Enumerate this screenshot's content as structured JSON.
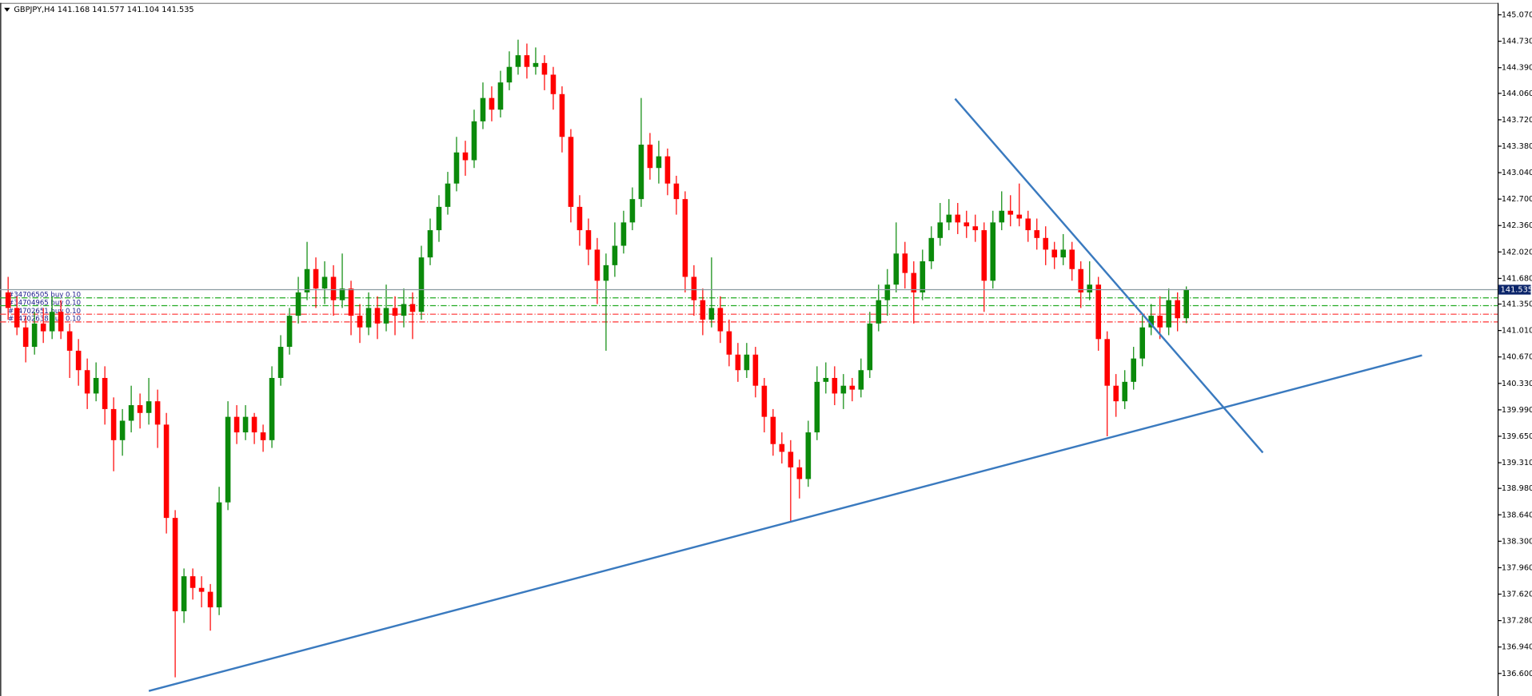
{
  "chart_data": {
    "type": "candlestick",
    "title": "GBPJPY,H4  141.168 141.577 141.104 141.535",
    "color_up": "#0b8a0b",
    "color_down": "#ff0000",
    "xlim": [
      -0.9,
      169.4
    ],
    "ylim": [
      136.31,
      145.21
    ],
    "yticks": [
      {
        "value": 145.07,
        "label": "145.070"
      },
      {
        "value": 144.73,
        "label": "144.730"
      },
      {
        "value": 144.39,
        "label": "144.390"
      },
      {
        "value": 144.06,
        "label": "144.060"
      },
      {
        "value": 143.72,
        "label": "143.720"
      },
      {
        "value": 143.38,
        "label": "143.380"
      },
      {
        "value": 143.04,
        "label": "143.040"
      },
      {
        "value": 142.7,
        "label": "142.700"
      },
      {
        "value": 142.36,
        "label": "142.360"
      },
      {
        "value": 142.02,
        "label": "142.020"
      },
      {
        "value": 141.68,
        "label": "141.680"
      },
      {
        "value": 141.35,
        "label": "141.350"
      },
      {
        "value": 141.01,
        "label": "141.010"
      },
      {
        "value": 140.67,
        "label": "140.670"
      },
      {
        "value": 140.33,
        "label": "140.330"
      },
      {
        "value": 139.99,
        "label": "139.990"
      },
      {
        "value": 139.65,
        "label": "139.650"
      },
      {
        "value": 139.31,
        "label": "139.310"
      },
      {
        "value": 138.98,
        "label": "138.980"
      },
      {
        "value": 138.64,
        "label": "138.640"
      },
      {
        "value": 138.3,
        "label": "138.300"
      },
      {
        "value": 137.96,
        "label": "137.960"
      },
      {
        "value": 137.62,
        "label": "137.620"
      },
      {
        "value": 137.28,
        "label": "137.280"
      },
      {
        "value": 136.94,
        "label": "136.940"
      },
      {
        "value": 136.6,
        "label": "136.600"
      }
    ],
    "bid": 141.535,
    "ohlc": [
      [
        141.5,
        141.7,
        141.15,
        141.3
      ],
      [
        141.3,
        141.45,
        140.95,
        141.05
      ],
      [
        141.05,
        141.2,
        140.6,
        140.8
      ],
      [
        140.8,
        141.25,
        140.7,
        141.1
      ],
      [
        141.1,
        141.3,
        140.85,
        141.0
      ],
      [
        141.0,
        141.45,
        140.9,
        141.25
      ],
      [
        141.25,
        141.4,
        140.9,
        141.0
      ],
      [
        141.0,
        141.1,
        140.4,
        140.75
      ],
      [
        140.75,
        140.9,
        140.3,
        140.5
      ],
      [
        140.5,
        140.65,
        140.0,
        140.2
      ],
      [
        140.2,
        140.6,
        140.1,
        140.4
      ],
      [
        140.4,
        140.55,
        139.8,
        140.0
      ],
      [
        140.0,
        140.15,
        139.2,
        139.6
      ],
      [
        139.6,
        140.0,
        139.4,
        139.85
      ],
      [
        139.85,
        140.3,
        139.7,
        140.05
      ],
      [
        140.05,
        140.2,
        139.75,
        139.95
      ],
      [
        139.95,
        140.4,
        139.8,
        140.1
      ],
      [
        140.1,
        140.25,
        139.5,
        139.8
      ],
      [
        139.8,
        139.95,
        138.4,
        138.6
      ],
      [
        138.6,
        138.7,
        136.55,
        137.4
      ],
      [
        137.4,
        137.95,
        137.25,
        137.85
      ],
      [
        137.85,
        137.95,
        137.55,
        137.7
      ],
      [
        137.7,
        137.85,
        137.45,
        137.65
      ],
      [
        137.65,
        137.75,
        137.15,
        137.45
      ],
      [
        137.45,
        139.0,
        137.35,
        138.8
      ],
      [
        138.8,
        140.1,
        138.7,
        139.9
      ],
      [
        139.9,
        140.05,
        139.55,
        139.7
      ],
      [
        139.7,
        140.05,
        139.6,
        139.9
      ],
      [
        139.9,
        139.95,
        139.55,
        139.7
      ],
      [
        139.7,
        139.8,
        139.45,
        139.6
      ],
      [
        139.6,
        140.55,
        139.5,
        140.4
      ],
      [
        140.4,
        140.95,
        140.3,
        140.8
      ],
      [
        140.8,
        141.3,
        140.7,
        141.2
      ],
      [
        141.2,
        141.7,
        141.1,
        141.5
      ],
      [
        141.5,
        142.15,
        141.4,
        141.8
      ],
      [
        141.8,
        141.95,
        141.3,
        141.55
      ],
      [
        141.55,
        141.9,
        141.35,
        141.7
      ],
      [
        141.7,
        141.85,
        141.2,
        141.4
      ],
      [
        141.4,
        142.0,
        141.3,
        141.55
      ],
      [
        141.55,
        141.65,
        140.95,
        141.2
      ],
      [
        141.2,
        141.35,
        140.85,
        141.05
      ],
      [
        141.05,
        141.5,
        140.95,
        141.3
      ],
      [
        141.3,
        141.45,
        140.9,
        141.1
      ],
      [
        141.1,
        141.6,
        141.0,
        141.3
      ],
      [
        141.3,
        141.45,
        140.95,
        141.2
      ],
      [
        141.2,
        141.55,
        141.05,
        141.35
      ],
      [
        141.35,
        141.5,
        140.9,
        141.25
      ],
      [
        141.25,
        142.1,
        141.15,
        141.95
      ],
      [
        141.95,
        142.45,
        141.85,
        142.3
      ],
      [
        142.3,
        142.75,
        142.15,
        142.6
      ],
      [
        142.6,
        143.05,
        142.5,
        142.9
      ],
      [
        142.9,
        143.5,
        142.8,
        143.3
      ],
      [
        143.3,
        143.45,
        143.0,
        143.2
      ],
      [
        143.2,
        143.85,
        143.1,
        143.7
      ],
      [
        143.7,
        144.2,
        143.6,
        144.0
      ],
      [
        144.0,
        144.15,
        143.7,
        143.85
      ],
      [
        143.85,
        144.35,
        143.75,
        144.2
      ],
      [
        144.2,
        144.6,
        144.1,
        144.4
      ],
      [
        144.4,
        144.75,
        144.3,
        144.55
      ],
      [
        144.55,
        144.7,
        144.25,
        144.4
      ],
      [
        144.4,
        144.65,
        144.3,
        144.45
      ],
      [
        144.45,
        144.55,
        144.1,
        144.3
      ],
      [
        144.3,
        144.4,
        143.85,
        144.05
      ],
      [
        144.05,
        144.15,
        143.3,
        143.5
      ],
      [
        143.5,
        143.6,
        142.4,
        142.6
      ],
      [
        142.6,
        142.75,
        142.1,
        142.3
      ],
      [
        142.3,
        142.45,
        141.85,
        142.05
      ],
      [
        142.05,
        142.2,
        141.35,
        141.65
      ],
      [
        141.65,
        142.0,
        140.75,
        141.85
      ],
      [
        141.85,
        142.4,
        141.7,
        142.1
      ],
      [
        142.1,
        142.55,
        142.0,
        142.4
      ],
      [
        142.4,
        142.85,
        142.3,
        142.7
      ],
      [
        142.7,
        144.0,
        142.6,
        143.4
      ],
      [
        143.4,
        143.55,
        142.95,
        143.1
      ],
      [
        143.1,
        143.45,
        142.9,
        143.25
      ],
      [
        143.25,
        143.35,
        142.75,
        142.9
      ],
      [
        142.9,
        143.0,
        142.5,
        142.7
      ],
      [
        142.7,
        142.8,
        141.5,
        141.7
      ],
      [
        141.7,
        141.85,
        141.2,
        141.4
      ],
      [
        141.4,
        141.55,
        140.95,
        141.15
      ],
      [
        141.15,
        141.95,
        141.05,
        141.3
      ],
      [
        141.3,
        141.45,
        140.85,
        141.0
      ],
      [
        141.0,
        141.15,
        140.55,
        140.7
      ],
      [
        140.7,
        140.85,
        140.35,
        140.5
      ],
      [
        140.5,
        140.85,
        140.4,
        140.7
      ],
      [
        140.7,
        140.8,
        140.15,
        140.3
      ],
      [
        140.3,
        140.4,
        139.7,
        139.9
      ],
      [
        139.9,
        140.0,
        139.4,
        139.55
      ],
      [
        139.55,
        139.7,
        139.3,
        139.45
      ],
      [
        139.45,
        139.6,
        138.55,
        139.25
      ],
      [
        139.25,
        139.35,
        138.85,
        139.1
      ],
      [
        139.1,
        139.85,
        139.0,
        139.7
      ],
      [
        139.7,
        140.55,
        139.6,
        140.35
      ],
      [
        140.35,
        140.6,
        140.2,
        140.4
      ],
      [
        140.4,
        140.55,
        140.05,
        140.2
      ],
      [
        140.2,
        140.45,
        140.0,
        140.3
      ],
      [
        140.3,
        140.4,
        140.1,
        140.25
      ],
      [
        140.25,
        140.65,
        140.15,
        140.5
      ],
      [
        140.5,
        141.25,
        140.4,
        141.1
      ],
      [
        141.1,
        141.6,
        141.0,
        141.4
      ],
      [
        141.4,
        141.8,
        141.2,
        141.6
      ],
      [
        141.6,
        142.4,
        141.5,
        142.0
      ],
      [
        142.0,
        142.15,
        141.55,
        141.75
      ],
      [
        141.75,
        141.9,
        141.1,
        141.5
      ],
      [
        141.5,
        142.05,
        141.4,
        141.9
      ],
      [
        141.9,
        142.35,
        141.8,
        142.2
      ],
      [
        142.2,
        142.65,
        142.1,
        142.4
      ],
      [
        142.4,
        142.7,
        142.3,
        142.5
      ],
      [
        142.5,
        142.65,
        142.25,
        142.4
      ],
      [
        142.4,
        142.55,
        142.2,
        142.35
      ],
      [
        142.35,
        142.5,
        142.15,
        142.3
      ],
      [
        142.3,
        142.4,
        141.25,
        141.65
      ],
      [
        141.65,
        142.55,
        141.55,
        142.4
      ],
      [
        142.4,
        142.8,
        142.3,
        142.55
      ],
      [
        142.55,
        142.75,
        142.35,
        142.5
      ],
      [
        142.5,
        142.9,
        142.35,
        142.45
      ],
      [
        142.45,
        142.55,
        142.15,
        142.3
      ],
      [
        142.3,
        142.45,
        142.05,
        142.2
      ],
      [
        142.2,
        142.35,
        141.85,
        142.05
      ],
      [
        142.05,
        142.15,
        141.8,
        141.95
      ],
      [
        141.95,
        142.25,
        141.85,
        142.05
      ],
      [
        142.05,
        142.15,
        141.65,
        141.8
      ],
      [
        141.8,
        141.9,
        141.3,
        141.5
      ],
      [
        141.5,
        141.9,
        141.4,
        141.6
      ],
      [
        141.6,
        141.7,
        140.75,
        140.9
      ],
      [
        140.9,
        141.0,
        139.65,
        140.3
      ],
      [
        140.3,
        140.45,
        139.9,
        140.1
      ],
      [
        140.1,
        140.5,
        140.0,
        140.35
      ],
      [
        140.35,
        140.8,
        140.25,
        140.65
      ],
      [
        140.65,
        141.2,
        140.55,
        141.05
      ],
      [
        141.05,
        141.35,
        140.95,
        141.2
      ],
      [
        141.2,
        141.45,
        140.9,
        141.05
      ],
      [
        141.05,
        141.55,
        140.95,
        141.4
      ],
      [
        141.4,
        141.5,
        141.0,
        141.168
      ],
      [
        141.168,
        141.577,
        141.104,
        141.535
      ]
    ],
    "trendlines": [
      {
        "color": "#3a7abf",
        "x": [
          16,
          160.8
        ],
        "y": [
          136.375,
          140.691
        ]
      },
      {
        "color": "#3a7abf",
        "x": [
          107.7,
          142.7
        ],
        "y": [
          143.99,
          139.44
        ]
      }
    ],
    "orders": [
      {
        "label": "#34706505 buy 0.10",
        "price": 141.43,
        "color": "#22aa22"
      },
      {
        "label": "#34704965 buy 0.10",
        "price": 141.33,
        "color": "#22aa22"
      },
      {
        "label": "#34702651 buy 0.10",
        "price": 141.22,
        "color": "#ff3030"
      },
      {
        "label": "#34702638 buy 0.10",
        "price": 141.12,
        "color": "#ff3030"
      }
    ]
  }
}
